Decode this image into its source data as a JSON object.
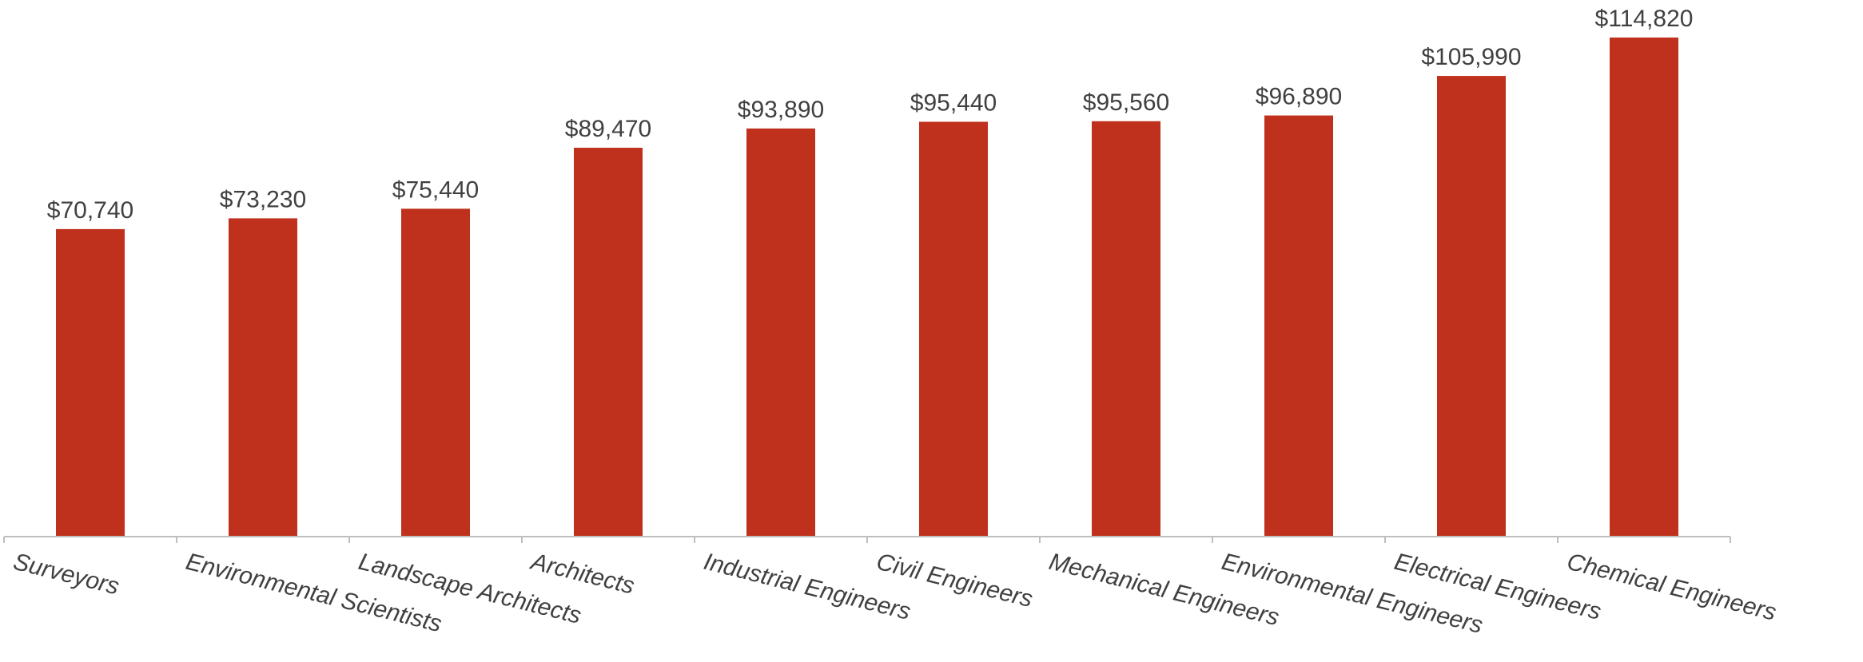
{
  "chart_data": {
    "type": "bar",
    "categories": [
      "Surveyors",
      "Environmental Scientists",
      "Landscape Architects",
      "Architects",
      "Industrial Engineers",
      "Civil Engineers",
      "Mechanical Engineers",
      "Environmental Engineers",
      "Electrical Engineers",
      "Chemical Engineers"
    ],
    "values": [
      70740,
      73230,
      75440,
      89470,
      93890,
      95440,
      95560,
      96890,
      105990,
      114820
    ],
    "value_labels": [
      "$70,740",
      "$73,230",
      "$75,440",
      "$89,470",
      "$93,890",
      "$95,440",
      "$95,560",
      "$96,890",
      "$105,990",
      "$114,820"
    ],
    "title": "",
    "xlabel": "",
    "ylabel": "",
    "ylim": [
      0,
      120000
    ],
    "grid": false,
    "legend": "none",
    "colors": {
      "bar": "#BF311D",
      "axis": "#BFBFBF",
      "text": "#404040"
    }
  }
}
